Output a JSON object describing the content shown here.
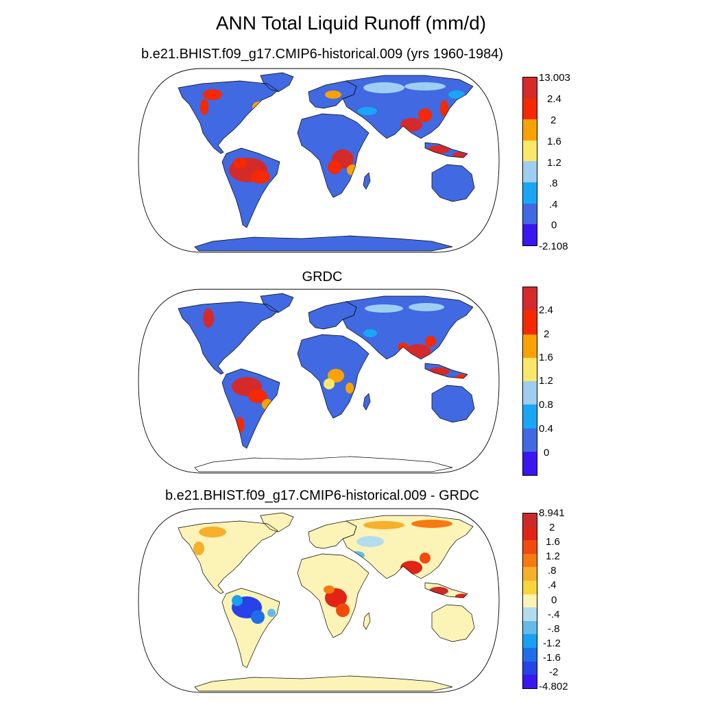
{
  "title": "ANN Total Liquid Runoff (mm/d)",
  "colors": {
    "model": [
      "#3a16f0",
      "#4169e1",
      "#19a7f5",
      "#9ecef2",
      "#fbe86a",
      "#f9a206",
      "#f52902",
      "#d52a2a"
    ],
    "diff": [
      "#3a16f0",
      "#2642e8",
      "#1e6fe8",
      "#1aa0f0",
      "#62bbe8",
      "#b4dcef",
      "#fcf3b6",
      "#f9d43a",
      "#f7b02a",
      "#f57a10",
      "#f24a0e",
      "#e12416",
      "#cc2a2a"
    ],
    "land_base": "#4169e1",
    "land_diff": "#fcf3b6",
    "ocean": "#ffffff"
  },
  "panels": [
    {
      "id": "model",
      "title": "b.e21.BHIST.f09_g17.CMIP6-historical.009 (yrs 1960-1984)",
      "colorbar_labels": [
        "13.003",
        "2.4",
        "2",
        "1.6",
        "1.2",
        ".8",
        ".4",
        "0",
        "-2.108"
      ]
    },
    {
      "id": "obs",
      "title": "GRDC",
      "colorbar_labels": [
        "2.4",
        "2",
        "1.6",
        "1.2",
        "0.8",
        "0.4",
        "0"
      ]
    },
    {
      "id": "diff",
      "title": "b.e21.BHIST.f09_g17.CMIP6-historical.009 - GRDC",
      "colorbar_labels": [
        "8.941",
        "2",
        "1.6",
        "1.2",
        ".8",
        ".4",
        "0",
        "-.4",
        "-.8",
        "-1.2",
        "-1.6",
        "-2",
        "-4.802"
      ]
    }
  ]
}
